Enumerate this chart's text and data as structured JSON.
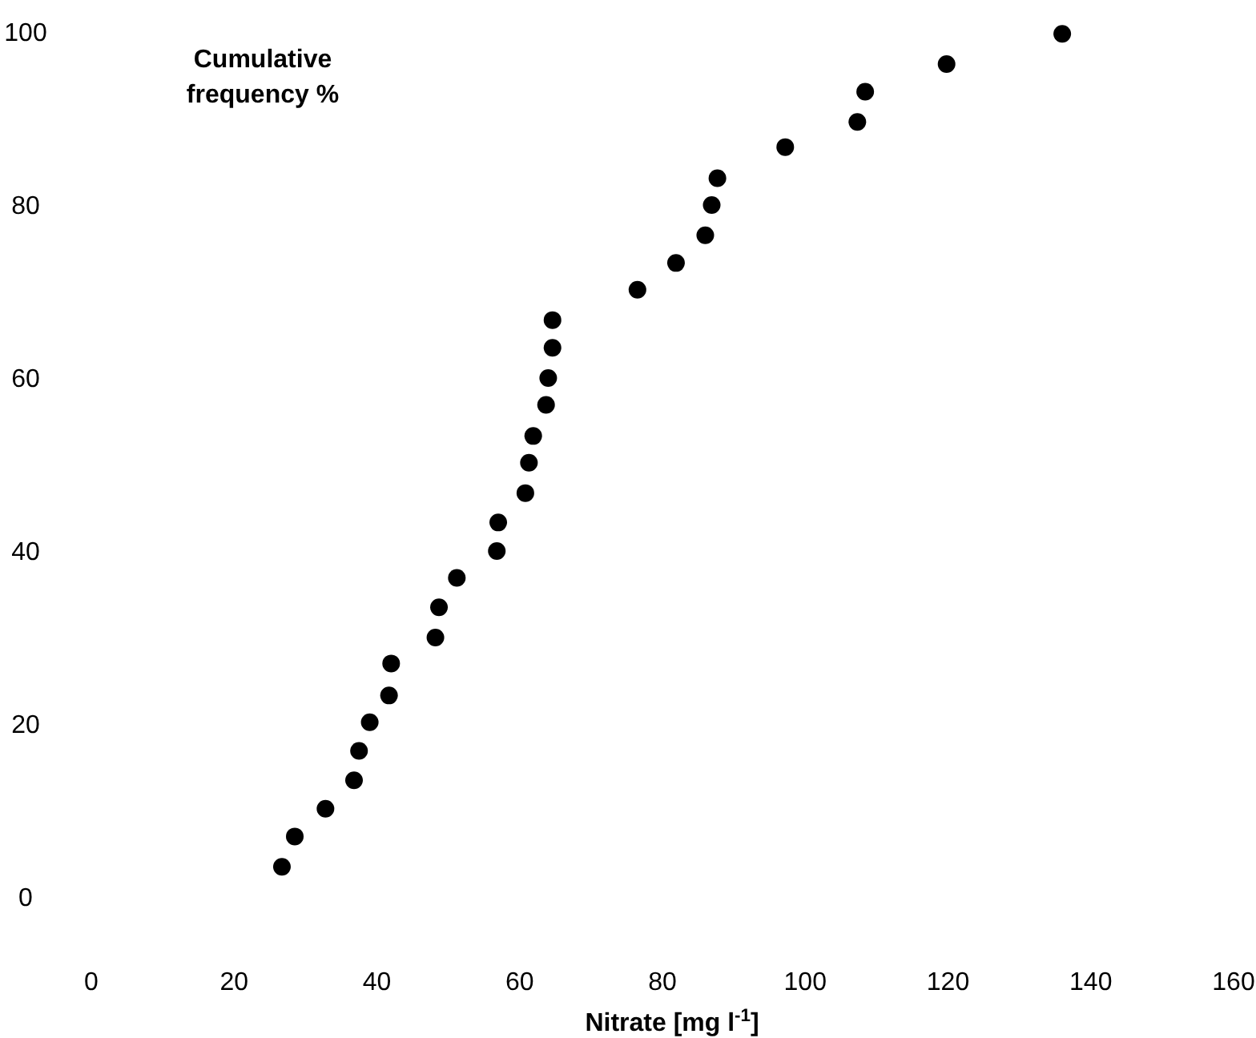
{
  "chart_data": {
    "type": "scatter",
    "xlabel": "Nitrate [mg l$^{-1}$]",
    "ylabel": "Cumulative frequency %",
    "xlim": [
      0,
      160
    ],
    "ylim": [
      0,
      100
    ],
    "xticks": [
      0,
      20,
      40,
      60,
      80,
      100,
      120,
      140,
      160
    ],
    "yticks": [
      0,
      20,
      40,
      60,
      80,
      100
    ],
    "marker": "circle",
    "grid": false,
    "series": [
      {
        "color": "#000000",
        "x": [
          26.7,
          28.5,
          32.8,
          36.8,
          37.5,
          39.0,
          41.7,
          42.0,
          48.2,
          48.7,
          51.2,
          56.8,
          57.0,
          60.8,
          61.3,
          61.9,
          63.7,
          64.0,
          64.6,
          64.6,
          76.5,
          81.9,
          86.0,
          86.9,
          87.7,
          97.2,
          107.3,
          108.4,
          119.8,
          136.0
        ],
        "values": [
          3.5,
          7.0,
          10.2,
          13.5,
          16.9,
          20.2,
          23.3,
          27.0,
          30.0,
          33.5,
          36.9,
          40.0,
          43.3,
          46.7,
          50.2,
          53.3,
          56.9,
          60.0,
          63.5,
          66.7,
          70.2,
          73.3,
          76.5,
          80.0,
          83.1,
          86.7,
          89.6,
          93.1,
          96.3,
          99.8
        ]
      }
    ]
  }
}
